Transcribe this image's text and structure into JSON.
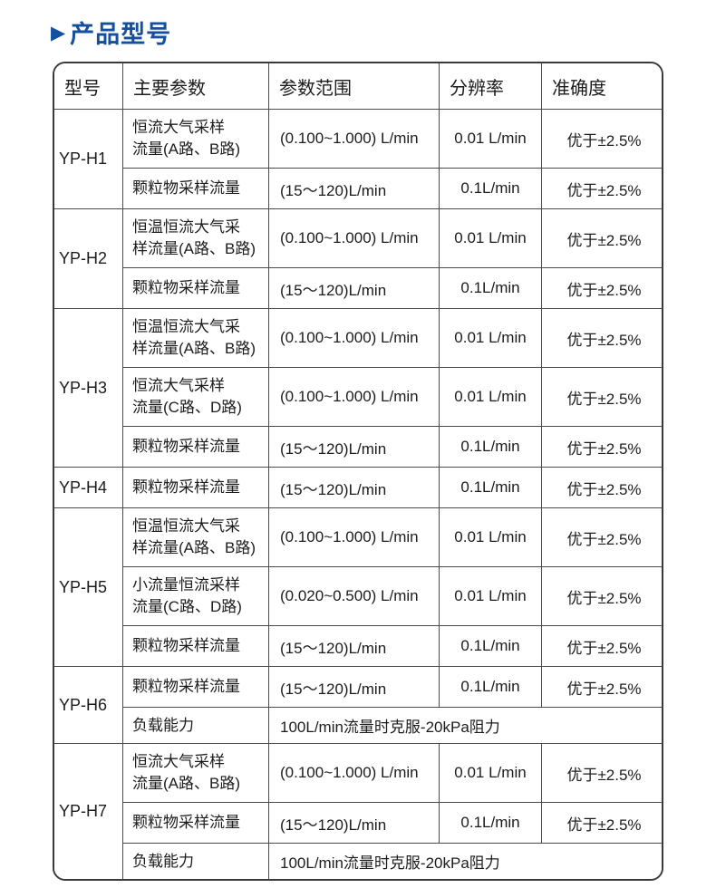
{
  "page": {
    "title_arrow": "▶",
    "title": "产品型号",
    "title_color": "#15509e"
  },
  "table": {
    "headers": [
      "型号",
      "主要参数",
      "参数范围",
      "分辨率",
      "准确度"
    ],
    "groups": [
      {
        "model": "YP-H1",
        "rows": [
          {
            "param": "恒流大气采样\n流量(A路、B路)",
            "range": "(0.100~1.000) L/min",
            "resolution": "0.01 L/min",
            "accuracy": "优于±2.5%"
          },
          {
            "param": "颗粒物采样流量",
            "range": "(15～120)L/min",
            "resolution": "0.1L/min",
            "accuracy": "优于±2.5%"
          }
        ]
      },
      {
        "model": "YP-H2",
        "rows": [
          {
            "param": "恒温恒流大气采\n样流量(A路、B路)",
            "range": "(0.100~1.000) L/min",
            "resolution": "0.01 L/min",
            "accuracy": "优于±2.5%"
          },
          {
            "param": "颗粒物采样流量",
            "range": "(15～120)L/min",
            "resolution": "0.1L/min",
            "accuracy": "优于±2.5%"
          }
        ]
      },
      {
        "model": "YP-H3",
        "rows": [
          {
            "param": "恒温恒流大气采\n样流量(A路、B路)",
            "range": "(0.100~1.000) L/min",
            "resolution": "0.01 L/min",
            "accuracy": "优于±2.5%"
          },
          {
            "param": "恒流大气采样\n流量(C路、D路)",
            "range": "(0.100~1.000) L/min",
            "resolution": "0.01 L/min",
            "accuracy": "优于±2.5%"
          },
          {
            "param": "颗粒物采样流量",
            "range": "(15～120)L/min",
            "resolution": "0.1L/min",
            "accuracy": "优于±2.5%"
          }
        ]
      },
      {
        "model": "YP-H4",
        "rows": [
          {
            "param": "颗粒物采样流量",
            "range": "(15～120)L/min",
            "resolution": "0.1L/min",
            "accuracy": "优于±2.5%"
          }
        ]
      },
      {
        "model": "YP-H5",
        "rows": [
          {
            "param": "恒温恒流大气采\n样流量(A路、B路)",
            "range": "(0.100~1.000) L/min",
            "resolution": "0.01 L/min",
            "accuracy": "优于±2.5%"
          },
          {
            "param": "小流量恒流采样\n流量(C路、D路)",
            "range": "(0.020~0.500) L/min",
            "resolution": "0.01 L/min",
            "accuracy": "优于±2.5%"
          },
          {
            "param": "颗粒物采样流量",
            "range": "(15～120)L/min",
            "resolution": "0.1L/min",
            "accuracy": "优于±2.5%"
          }
        ]
      },
      {
        "model": "YP-H6",
        "rows": [
          {
            "param": "颗粒物采样流量",
            "range": "(15～120)L/min",
            "resolution": "0.1L/min",
            "accuracy": "优于±2.5%"
          },
          {
            "param": "负载能力",
            "range": "100L/min流量时克服-20kPa阻力",
            "span": 3
          }
        ]
      },
      {
        "model": "YP-H7",
        "rows": [
          {
            "param": "恒流大气采样\n流量(A路、B路)",
            "range": "(0.100~1.000) L/min",
            "resolution": "0.01 L/min",
            "accuracy": "优于±2.5%"
          },
          {
            "param": "颗粒物采样流量",
            "range": "(15～120)L/min",
            "resolution": "0.1L/min",
            "accuracy": "优于±2.5%"
          },
          {
            "param": "负载能力",
            "range": "100L/min流量时克服-20kPa阻力",
            "span": 3
          }
        ]
      }
    ]
  }
}
